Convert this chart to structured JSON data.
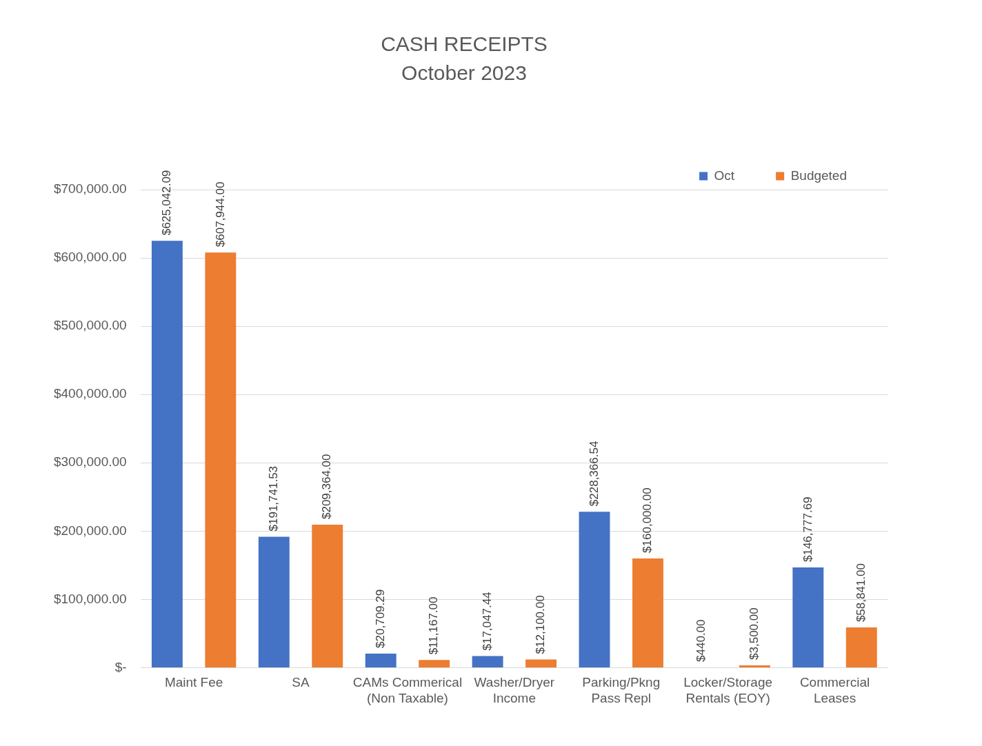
{
  "chart_data": {
    "type": "bar",
    "title": "CASH RECEIPTS",
    "subtitle": "October 2023",
    "categories": [
      "Maint Fee",
      "SA",
      "CAMs Commerical (Non Taxable)",
      "Washer/Dryer Income",
      "Parking/Pkng Pass Repl",
      "Locker/Storage Rentals (EOY)",
      "Commercial Leases"
    ],
    "series": [
      {
        "name": "Oct",
        "color": "#4472c4",
        "values": [
          625042.09,
          191741.53,
          20709.29,
          17047.44,
          228366.54,
          440.0,
          146777.69
        ],
        "value_labels": [
          "$625,042.09",
          "$191,741.53",
          "$20,709.29",
          "$17,047.44",
          "$228,366.54",
          "$440.00",
          "$146,777.69"
        ]
      },
      {
        "name": "Budgeted",
        "color": "#ed7d31",
        "values": [
          607944.0,
          209364.0,
          11167.0,
          12100.0,
          160000.0,
          3500.0,
          58841.0
        ],
        "value_labels": [
          "$607,944.00",
          "$209,364.00",
          "$11,167.00",
          "$12,100.00",
          "$160,000.00",
          "$3,500.00",
          "$58,841.00"
        ]
      }
    ],
    "ylim": [
      0,
      700000
    ],
    "yticks": [
      {
        "value": 0,
        "label": "$-"
      },
      {
        "value": 100000,
        "label": "$100,000.00"
      },
      {
        "value": 200000,
        "label": "$200,000.00"
      },
      {
        "value": 300000,
        "label": "$300,000.00"
      },
      {
        "value": 400000,
        "label": "$400,000.00"
      },
      {
        "value": 500000,
        "label": "$500,000.00"
      },
      {
        "value": 600000,
        "label": "$600,000.00"
      },
      {
        "value": 700000,
        "label": "$700,000.00"
      }
    ],
    "grid": "y",
    "legend": "top right"
  }
}
